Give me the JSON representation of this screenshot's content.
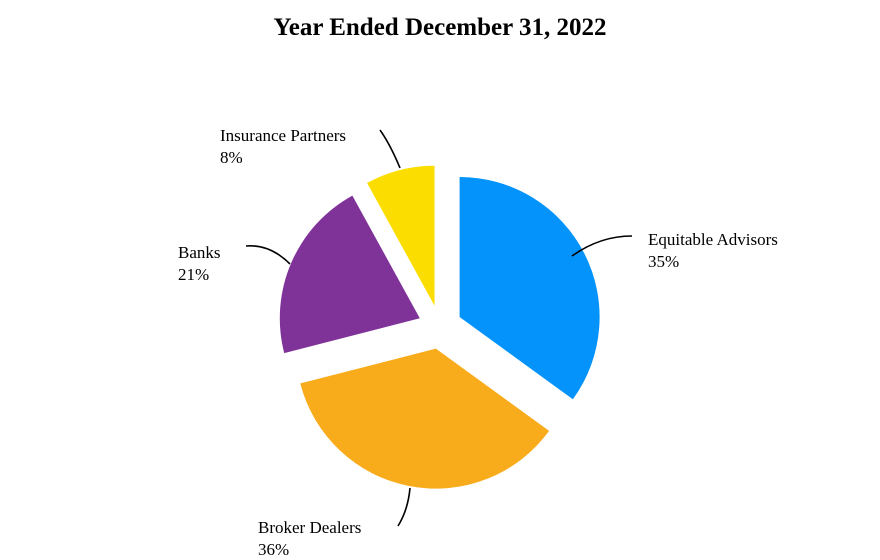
{
  "chart_data": {
    "type": "pie",
    "title": "Year Ended December 31, 2022",
    "slices": [
      {
        "name": "Equitable Advisors",
        "pct_label": "35%",
        "value": 35,
        "color": "#0393fb"
      },
      {
        "name": "Broker Dealers",
        "pct_label": "36%",
        "value": 36,
        "color": "#f8ac1c"
      },
      {
        "name": "Banks",
        "pct_label": "21%",
        "value": 21,
        "color": "#7f3399"
      },
      {
        "name": "Insurance Partners",
        "pct_label": "8%",
        "value": 8,
        "color": "#fbde00"
      }
    ],
    "exploded": true,
    "legend": "none"
  }
}
